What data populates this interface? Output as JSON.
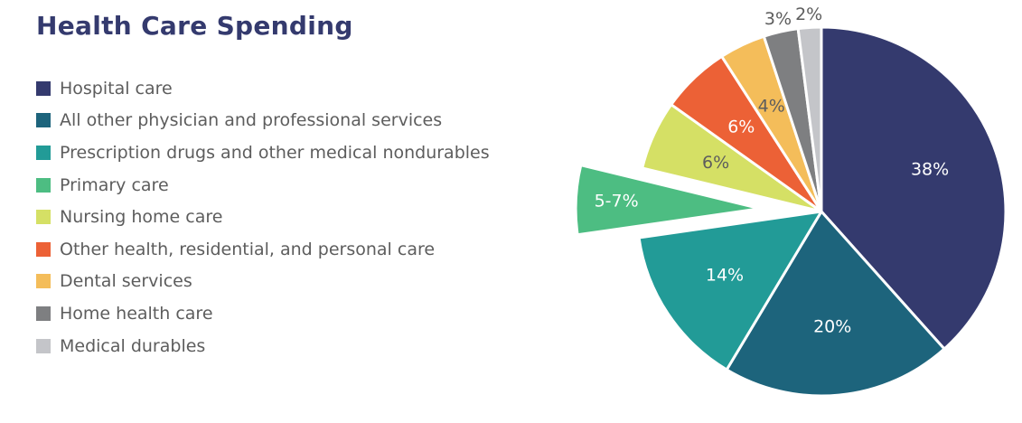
{
  "chart_data": {
    "type": "pie",
    "title": "Health Care Spending",
    "series": [
      {
        "name": "Hospital care",
        "value": 38,
        "label": "38%",
        "color": "#343a6e",
        "label_color": "#ffffff",
        "exploded": false
      },
      {
        "name": "All other physician and professional services",
        "value": 20,
        "label": "20%",
        "color": "#1d647c",
        "label_color": "#ffffff",
        "exploded": false
      },
      {
        "name": "Prescription drugs and other medical nondurables",
        "value": 14,
        "label": "14%",
        "color": "#229b97",
        "label_color": "#ffffff",
        "exploded": false
      },
      {
        "name": "Primary care",
        "value": 6,
        "label": "5-7%",
        "color": "#4dbd82",
        "label_color": "#ffffff",
        "exploded": true
      },
      {
        "name": "Nursing home care",
        "value": 6,
        "label": "6%",
        "color": "#d5e065",
        "label_color": "#5d5d5d",
        "exploded": false
      },
      {
        "name": "Other health, residential, and personal care",
        "value": 6,
        "label": "6%",
        "color": "#ec6136",
        "label_color": "#ffffff",
        "exploded": false
      },
      {
        "name": "Dental services",
        "value": 4,
        "label": "4%",
        "color": "#f4bd5a",
        "label_color": "#5d5d5d",
        "exploded": false
      },
      {
        "name": "Home health care",
        "value": 3,
        "label": "3%",
        "color": "#7e7f81",
        "label_color": "#5d5d5d",
        "exploded": false,
        "label_outside": true
      },
      {
        "name": "Medical durables",
        "value": 2,
        "label": "2%",
        "color": "#c4c5c9",
        "label_color": "#5d5d5d",
        "exploded": false,
        "label_outside": true
      }
    ],
    "legend_position": "left"
  }
}
